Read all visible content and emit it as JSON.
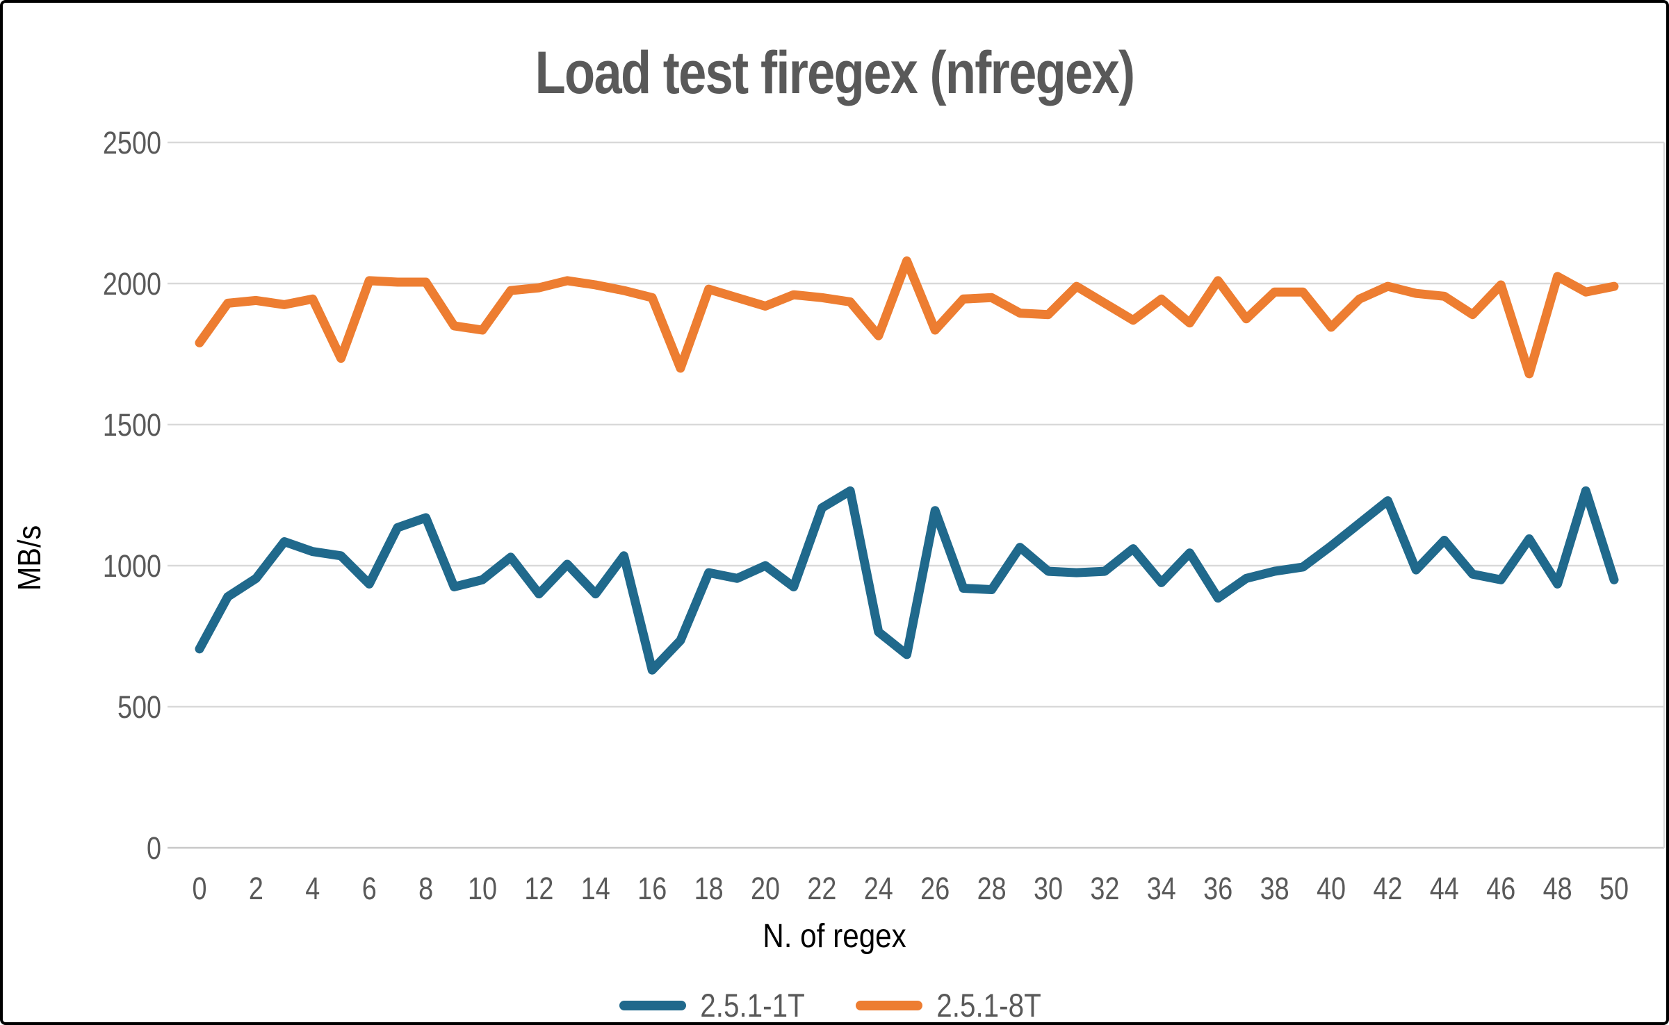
{
  "title": "Load test firegex (nfregex)",
  "legend": {
    "items": [
      {
        "label": "2.5.1-1T",
        "color": "#20698C"
      },
      {
        "label": "2.5.1-8T",
        "color": "#ED7D31"
      }
    ]
  },
  "colors": {
    "gridline": "#D9D9D9",
    "axis_line": "#C8C8C8",
    "tick_text": "#595959",
    "title_text": "#595959"
  },
  "chart_data": {
    "type": "line",
    "title": "Load test firegex (nfregex)",
    "xlabel": "N. of regex",
    "ylabel": "MB/s",
    "x": [
      0,
      1,
      2,
      3,
      4,
      5,
      6,
      7,
      8,
      9,
      10,
      11,
      12,
      13,
      14,
      15,
      16,
      17,
      18,
      19,
      20,
      21,
      22,
      23,
      24,
      25,
      26,
      27,
      28,
      29,
      30,
      31,
      32,
      33,
      34,
      35,
      36,
      37,
      38,
      39,
      40,
      41,
      42,
      43,
      44,
      45,
      46,
      47,
      48,
      49,
      50
    ],
    "xticks": [
      0,
      2,
      4,
      6,
      8,
      10,
      12,
      14,
      16,
      18,
      20,
      22,
      24,
      26,
      28,
      30,
      32,
      34,
      36,
      38,
      40,
      42,
      44,
      46,
      48,
      50
    ],
    "yticks": [
      0,
      500,
      1000,
      1500,
      2000,
      2500
    ],
    "ylim": [
      0,
      2500
    ],
    "grid": "horizontal",
    "legend_position": "bottom",
    "series": [
      {
        "name": "2.5.1-1T",
        "color": "#20698C",
        "values": [
          705,
          890,
          955,
          1085,
          1050,
          1035,
          935,
          1135,
          1170,
          925,
          950,
          1030,
          900,
          1005,
          900,
          1035,
          630,
          735,
          975,
          955,
          1000,
          925,
          1205,
          1265,
          765,
          685,
          1195,
          920,
          915,
          1065,
          980,
          975,
          980,
          1060,
          940,
          1045,
          885,
          955,
          980,
          995,
          1070,
          1150,
          1230,
          985,
          1090,
          970,
          950,
          1095,
          935,
          1265,
          950
        ]
      },
      {
        "name": "2.5.1-8T",
        "color": "#ED7D31",
        "values": [
          1790,
          1930,
          1940,
          1925,
          1945,
          1735,
          2010,
          2005,
          2005,
          1850,
          1835,
          1975,
          1985,
          2010,
          1995,
          1975,
          1950,
          1700,
          1980,
          1950,
          1920,
          1960,
          1950,
          1935,
          1815,
          2080,
          1835,
          1945,
          1950,
          1895,
          1890,
          1990,
          1930,
          1870,
          1945,
          1860,
          2010,
          1875,
          1970,
          1970,
          1845,
          1945,
          1990,
          1965,
          1955,
          1890,
          1995,
          1680,
          2025,
          1970,
          1990
        ]
      }
    ]
  }
}
